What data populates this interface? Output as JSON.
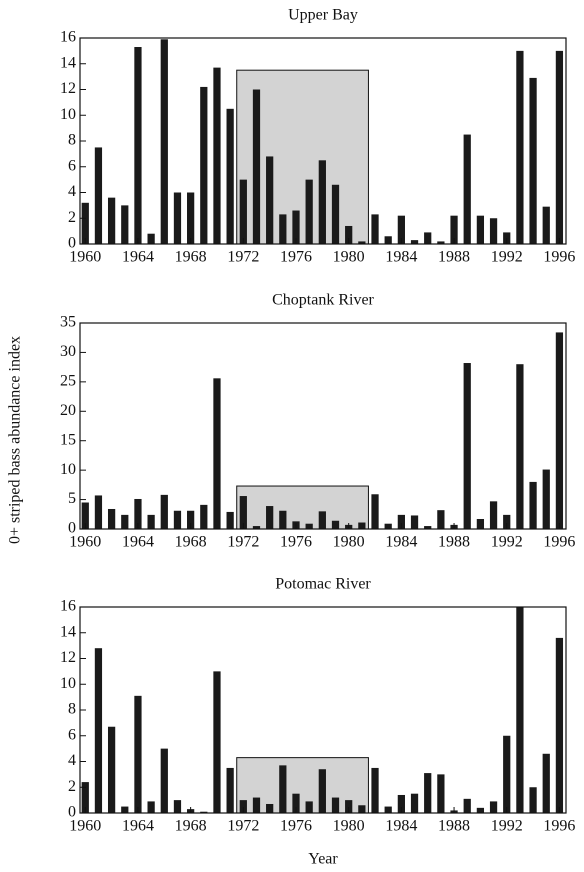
{
  "ylabel": "0+ striped bass abundance index",
  "xlabel": "Year",
  "chart_data": [
    {
      "type": "bar",
      "title": "Upper Bay",
      "color": "#1a1a1a",
      "x": [
        1960,
        1961,
        1962,
        1963,
        1964,
        1965,
        1966,
        1967,
        1968,
        1969,
        1970,
        1971,
        1972,
        1973,
        1974,
        1975,
        1976,
        1977,
        1978,
        1979,
        1980,
        1981,
        1982,
        1983,
        1984,
        1985,
        1986,
        1987,
        1988,
        1989,
        1990,
        1991,
        1992,
        1993,
        1994,
        1995,
        1996
      ],
      "values": [
        3.2,
        7.5,
        3.6,
        3.0,
        15.3,
        0.8,
        15.9,
        4.0,
        4.0,
        12.2,
        13.7,
        10.5,
        5.0,
        12.0,
        6.8,
        2.3,
        2.6,
        5.0,
        6.5,
        4.6,
        1.4,
        0.2,
        2.3,
        0.6,
        2.2,
        0.3,
        0.9,
        0.2,
        2.2,
        8.5,
        2.2,
        2.0,
        0.9,
        15.0,
        12.9,
        2.9,
        15.0
      ],
      "box": {
        "x0": 1971.5,
        "x1": 1981.5,
        "top": 13.5,
        "color": "#d3d3d3"
      },
      "xlim": [
        1959.6,
        1996.5
      ],
      "xticks": [
        1960,
        1964,
        1968,
        1972,
        1976,
        1980,
        1984,
        1988,
        1992,
        1996
      ],
      "ylim": [
        0,
        16
      ],
      "yticks": [
        0,
        2,
        4,
        6,
        8,
        10,
        12,
        14,
        16
      ],
      "grid": false
    },
    {
      "type": "bar",
      "title": "Choptank River",
      "color": "#1a1a1a",
      "x": [
        1960,
        1961,
        1962,
        1963,
        1964,
        1965,
        1966,
        1967,
        1968,
        1969,
        1970,
        1971,
        1972,
        1973,
        1974,
        1975,
        1976,
        1977,
        1978,
        1979,
        1980,
        1981,
        1982,
        1983,
        1984,
        1985,
        1986,
        1987,
        1988,
        1989,
        1990,
        1991,
        1992,
        1993,
        1994,
        1995,
        1996
      ],
      "values": [
        4.5,
        5.7,
        3.4,
        2.4,
        5.1,
        2.4,
        5.8,
        3.1,
        3.1,
        4.1,
        25.6,
        2.9,
        5.6,
        0.5,
        3.9,
        3.1,
        1.3,
        0.9,
        3.0,
        1.4,
        0.7,
        1.1,
        5.9,
        0.9,
        2.4,
        2.3,
        0.5,
        3.2,
        0.7,
        28.2,
        1.7,
        4.7,
        2.4,
        28.0,
        8.0,
        10.1,
        33.4
      ],
      "box": {
        "x0": 1971.5,
        "x1": 1981.5,
        "top": 7.3,
        "color": "#d3d3d3"
      },
      "xlim": [
        1959.6,
        1996.5
      ],
      "xticks": [
        1960,
        1964,
        1968,
        1972,
        1976,
        1980,
        1984,
        1988,
        1992,
        1996
      ],
      "ylim": [
        0,
        35
      ],
      "yticks": [
        0,
        5,
        10,
        15,
        20,
        25,
        30,
        35
      ],
      "grid": false
    },
    {
      "type": "bar",
      "title": "Potomac River",
      "color": "#1a1a1a",
      "x": [
        1960,
        1961,
        1962,
        1963,
        1964,
        1965,
        1966,
        1967,
        1968,
        1969,
        1970,
        1971,
        1972,
        1973,
        1974,
        1975,
        1976,
        1977,
        1978,
        1979,
        1980,
        1981,
        1982,
        1983,
        1984,
        1985,
        1986,
        1987,
        1988,
        1989,
        1990,
        1991,
        1992,
        1993,
        1994,
        1995,
        1996
      ],
      "values": [
        2.4,
        12.8,
        6.7,
        0.5,
        9.1,
        0.9,
        5.0,
        1.0,
        0.3,
        0.1,
        11.0,
        3.5,
        1.0,
        1.2,
        0.7,
        3.7,
        1.5,
        0.9,
        3.4,
        1.2,
        1.0,
        0.6,
        3.5,
        0.5,
        1.4,
        1.5,
        3.1,
        3.0,
        0.2,
        1.1,
        0.4,
        0.9,
        6.0,
        16.0,
        2.0,
        4.6,
        13.6
      ],
      "box": {
        "x0": 1971.5,
        "x1": 1981.5,
        "top": 4.3,
        "color": "#d3d3d3"
      },
      "xlim": [
        1959.6,
        1996.5
      ],
      "xticks": [
        1960,
        1964,
        1968,
        1972,
        1976,
        1980,
        1984,
        1988,
        1992,
        1996
      ],
      "ylim": [
        0,
        16
      ],
      "yticks": [
        0,
        2,
        4,
        6,
        8,
        10,
        12,
        14,
        16
      ],
      "grid": false
    }
  ]
}
